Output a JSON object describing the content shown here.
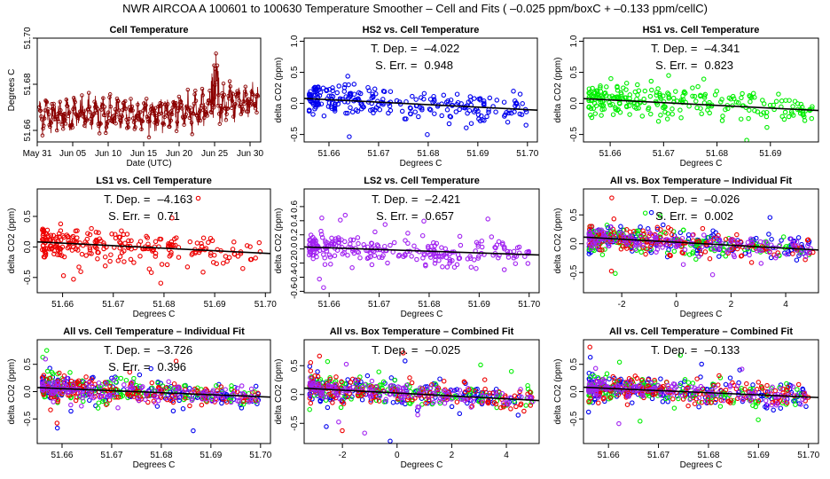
{
  "suptitle": "NWR   AIRCOA A   100601 to 100630   Temperature Smoother – Cell and Fits ( –0.025   ppm/boxC +   –0.133   ppm/cellC)",
  "colors": {
    "HS1": "#00ee00",
    "HS2": "#0000ee",
    "LS1": "#ee0000",
    "LS2": "#a020f0",
    "cell": "#8b0000",
    "fit": "#000000"
  },
  "chart_data": [
    {
      "id": "p1",
      "type": "line",
      "title": "Cell Temperature",
      "xlabel": "Date (UTC)",
      "ylabel": "Degrees C",
      "xlim": [
        0,
        31.5
      ],
      "ylim": [
        51.655,
        51.7
      ],
      "xticks": [
        0,
        5,
        10,
        15,
        20,
        25,
        30
      ],
      "xticklabels": [
        "May 31",
        "Jun 05",
        "Jun 10",
        "Jun 15",
        "Jun 20",
        "Jun 25",
        "Jun 30"
      ],
      "yticks": [
        51.66,
        51.68,
        51.7
      ],
      "yticklabels": [
        "51.66",
        "51.68",
        "51.70"
      ],
      "series": [
        {
          "name": "cell",
          "color": "cell",
          "base": 51.667,
          "noise": 0.005,
          "waveAmp": 0.004,
          "trend": 0.0005,
          "peak": 51.7
        }
      ]
    },
    {
      "id": "p2",
      "type": "scatter",
      "title": "HS2 vs. Cell Temperature",
      "xlabel": "Degrees C",
      "ylabel": "delta CO2 (ppm)",
      "xlim": [
        51.655,
        51.702
      ],
      "ylim": [
        -0.62,
        1.05
      ],
      "xticks": [
        51.66,
        51.67,
        51.68,
        51.69,
        51.7
      ],
      "xticklabels": [
        "51.66",
        "51.67",
        "51.68",
        "51.69",
        "51.70"
      ],
      "yticks": [
        -0.5,
        0.0,
        0.5,
        1.0
      ],
      "yticklabels": [
        "-0.5",
        "0.0",
        "0.5",
        "1.0"
      ],
      "series": [
        {
          "name": "HS2",
          "color": "HS2",
          "xmin": 51.656,
          "xmax": 51.7,
          "spread": 0.12
        }
      ],
      "fit": {
        "slope": -4.022,
        "xref": 51.675,
        "yref": 0.0
      },
      "annotations": [
        {
          "label": "T. Dep. =",
          "value": "–4.022"
        },
        {
          "label": "S. Err. =",
          "value": "0.948"
        }
      ]
    },
    {
      "id": "p3",
      "type": "scatter",
      "title": "HS1 vs. Cell Temperature",
      "xlabel": "Degrees C",
      "ylabel": "delta CO2 (ppm)",
      "xlim": [
        51.655,
        51.699
      ],
      "ylim": [
        -0.62,
        1.05
      ],
      "xticks": [
        51.66,
        51.67,
        51.68,
        51.69
      ],
      "xticklabels": [
        "51.66",
        "51.67",
        "51.68",
        "51.69"
      ],
      "yticks": [
        -0.5,
        0.0,
        0.5,
        1.0
      ],
      "yticklabels": [
        "-0.5",
        "0.0",
        "0.5",
        "1.0"
      ],
      "series": [
        {
          "name": "HS1",
          "color": "HS1",
          "xmin": 51.656,
          "xmax": 51.698,
          "spread": 0.12
        }
      ],
      "fit": {
        "slope": -4.341,
        "xref": 51.675,
        "yref": -0.01
      },
      "annotations": [
        {
          "label": "T. Dep. =",
          "value": "–4.341"
        },
        {
          "label": "S. Err. =",
          "value": "0.823"
        }
      ]
    },
    {
      "id": "p4",
      "type": "scatter",
      "title": "LS1 vs. Cell Temperature",
      "xlabel": "Degrees C",
      "ylabel": "delta CO2 (ppm)",
      "xlim": [
        51.655,
        51.701
      ],
      "ylim": [
        -0.75,
        0.95
      ],
      "xticks": [
        51.66,
        51.67,
        51.68,
        51.69,
        51.7
      ],
      "xticklabels": [
        "51.66",
        "51.67",
        "51.68",
        "51.69",
        "51.70"
      ],
      "yticks": [
        -0.5,
        0.0,
        0.5
      ],
      "yticklabels": [
        "-0.5",
        "0.0",
        "0.5"
      ],
      "series": [
        {
          "name": "LS1",
          "color": "LS1",
          "xmin": 51.656,
          "xmax": 51.699,
          "spread": 0.12
        }
      ],
      "fit": {
        "slope": -4.163,
        "xref": 51.675,
        "yref": 0.0
      },
      "annotations": [
        {
          "label": "T. Dep. =",
          "value": "–4.163"
        },
        {
          "label": "S. Err. =",
          "value": "0.71"
        }
      ]
    },
    {
      "id": "p5",
      "type": "scatter",
      "title": "LS2 vs. Cell Temperature",
      "xlabel": "Degrees C",
      "ylabel": "delta CO2 (ppm)",
      "xlim": [
        51.655,
        51.702
      ],
      "ylim": [
        -0.62,
        0.85
      ],
      "xticks": [
        51.66,
        51.67,
        51.68,
        51.69,
        51.7
      ],
      "xticklabels": [
        "51.66",
        "51.67",
        "51.68",
        "51.69",
        "51.70"
      ],
      "yticks": [
        -0.6,
        -0.4,
        -0.2,
        0.0,
        0.2,
        0.4,
        0.6
      ],
      "yticklabels": [
        "-0.6",
        "-0.4",
        "-0.2",
        "0.0",
        "0.2",
        "0.4",
        "0.6"
      ],
      "series": [
        {
          "name": "LS2",
          "color": "LS2",
          "xmin": 51.656,
          "xmax": 51.7,
          "spread": 0.09
        }
      ],
      "fit": {
        "slope": -2.421,
        "xref": 51.675,
        "yref": -0.02
      },
      "annotations": [
        {
          "label": "T. Dep. =",
          "value": "–2.421"
        },
        {
          "label": "S. Err. =",
          "value": "0.657"
        }
      ]
    },
    {
      "id": "p6",
      "type": "scatter",
      "title": "All vs. Box Temperature – Individual Fit",
      "xlabel": "Degrees C",
      "ylabel": "delta CO2 (ppm)",
      "xlim": [
        -3.4,
        5.2
      ],
      "ylim": [
        -0.85,
        0.95
      ],
      "xticks": [
        -2,
        0,
        2,
        4
      ],
      "xticklabels": [
        "-2",
        "0",
        "2",
        "4"
      ],
      "yticks": [
        -0.5,
        0.0,
        0.5
      ],
      "yticklabels": [
        "-0.5",
        "0.0",
        "0.5"
      ],
      "series": [
        {
          "name": "HS2",
          "color": "HS2",
          "xmin": -3.2,
          "xmax": 5.0,
          "spread": 0.11
        },
        {
          "name": "HS1",
          "color": "HS1",
          "xmin": -3.2,
          "xmax": 5.0,
          "spread": 0.11
        },
        {
          "name": "LS1",
          "color": "LS1",
          "xmin": -3.2,
          "xmax": 5.0,
          "spread": 0.11
        },
        {
          "name": "LS2",
          "color": "LS2",
          "xmin": -3.2,
          "xmax": 5.0,
          "spread": 0.08
        }
      ],
      "fit": {
        "slope": -0.026,
        "xref": 1.0,
        "yref": 0.0
      },
      "annotations": [
        {
          "label": "T. Dep. =",
          "value": "–0.026"
        },
        {
          "label": "S. Err. =",
          "value": "0.002"
        }
      ]
    },
    {
      "id": "p7",
      "type": "scatter",
      "title": "All vs. Cell Temperature – Individual Fit",
      "xlabel": "Degrees C",
      "ylabel": "delta CO2 (ppm)",
      "xlim": [
        51.655,
        51.702
      ],
      "ylim": [
        -0.95,
        0.95
      ],
      "xticks": [
        51.66,
        51.67,
        51.68,
        51.69,
        51.7
      ],
      "xticklabels": [
        "51.66",
        "51.67",
        "51.68",
        "51.69",
        "51.70"
      ],
      "yticks": [
        -0.5,
        0.0,
        0.5
      ],
      "yticklabels": [
        "-0.5",
        "0.0",
        "0.5"
      ],
      "series": [
        {
          "name": "HS2",
          "color": "HS2",
          "xmin": 51.656,
          "xmax": 51.7,
          "spread": 0.11
        },
        {
          "name": "HS1",
          "color": "HS1",
          "xmin": 51.656,
          "xmax": 51.7,
          "spread": 0.11
        },
        {
          "name": "LS1",
          "color": "LS1",
          "xmin": 51.656,
          "xmax": 51.7,
          "spread": 0.11
        },
        {
          "name": "LS2",
          "color": "LS2",
          "xmin": 51.656,
          "xmax": 51.7,
          "spread": 0.08
        }
      ],
      "fit": {
        "slope": -3.726,
        "xref": 51.675,
        "yref": 0.0
      },
      "annotations": [
        {
          "label": "T. Dep. =",
          "value": "–3.726"
        },
        {
          "label": "S. Err. =",
          "value": "0.396"
        }
      ]
    },
    {
      "id": "p8",
      "type": "scatter",
      "title": "All vs. Box Temperature – Combined Fit",
      "xlabel": "Degrees C",
      "ylabel": "delta CO2 (ppm)",
      "xlim": [
        -3.4,
        5.2
      ],
      "ylim": [
        -0.85,
        0.95
      ],
      "xticks": [
        -2,
        0,
        2,
        4
      ],
      "xticklabels": [
        "-2",
        "0",
        "2",
        "4"
      ],
      "yticks": [
        -0.5,
        0.0,
        0.5
      ],
      "yticklabels": [
        "-0.5",
        "0.0",
        "0.5"
      ],
      "series": [
        {
          "name": "HS2",
          "color": "HS2",
          "xmin": -3.2,
          "xmax": 5.0,
          "spread": 0.11
        },
        {
          "name": "HS1",
          "color": "HS1",
          "xmin": -3.2,
          "xmax": 5.0,
          "spread": 0.11
        },
        {
          "name": "LS1",
          "color": "LS1",
          "xmin": -3.2,
          "xmax": 5.0,
          "spread": 0.11
        },
        {
          "name": "LS2",
          "color": "LS2",
          "xmin": -3.2,
          "xmax": 5.0,
          "spread": 0.08
        }
      ],
      "fit": {
        "slope": -0.025,
        "xref": 1.0,
        "yref": 0.0
      },
      "annotations": [
        {
          "label": "T. Dep. =",
          "value": "–0.025"
        }
      ]
    },
    {
      "id": "p9",
      "type": "scatter",
      "title": "All vs. Cell Temperature – Combined Fit",
      "xlabel": "Degrees C",
      "ylabel": "delta CO2 (ppm)",
      "xlim": [
        51.655,
        51.702
      ],
      "ylim": [
        -0.95,
        0.95
      ],
      "xticks": [
        51.66,
        51.67,
        51.68,
        51.69,
        51.7
      ],
      "xticklabels": [
        "51.66",
        "51.67",
        "51.68",
        "51.69",
        "51.70"
      ],
      "yticks": [
        -0.5,
        0.0,
        0.5
      ],
      "yticklabels": [
        "-0.5",
        "0.0",
        "0.5"
      ],
      "series": [
        {
          "name": "HS2",
          "color": "HS2",
          "xmin": 51.656,
          "xmax": 51.7,
          "spread": 0.11
        },
        {
          "name": "HS1",
          "color": "HS1",
          "xmin": 51.656,
          "xmax": 51.7,
          "spread": 0.11
        },
        {
          "name": "LS1",
          "color": "LS1",
          "xmin": 51.656,
          "xmax": 51.7,
          "spread": 0.11
        },
        {
          "name": "LS2",
          "color": "LS2",
          "xmin": 51.656,
          "xmax": 51.7,
          "spread": 0.08
        }
      ],
      "fit": {
        "slope": -0.133,
        "xref": 51.675,
        "yref": 0.0,
        "perCellScale": 30
      },
      "annotations": [
        {
          "label": "T. Dep. =",
          "value": "–0.133"
        }
      ]
    }
  ]
}
